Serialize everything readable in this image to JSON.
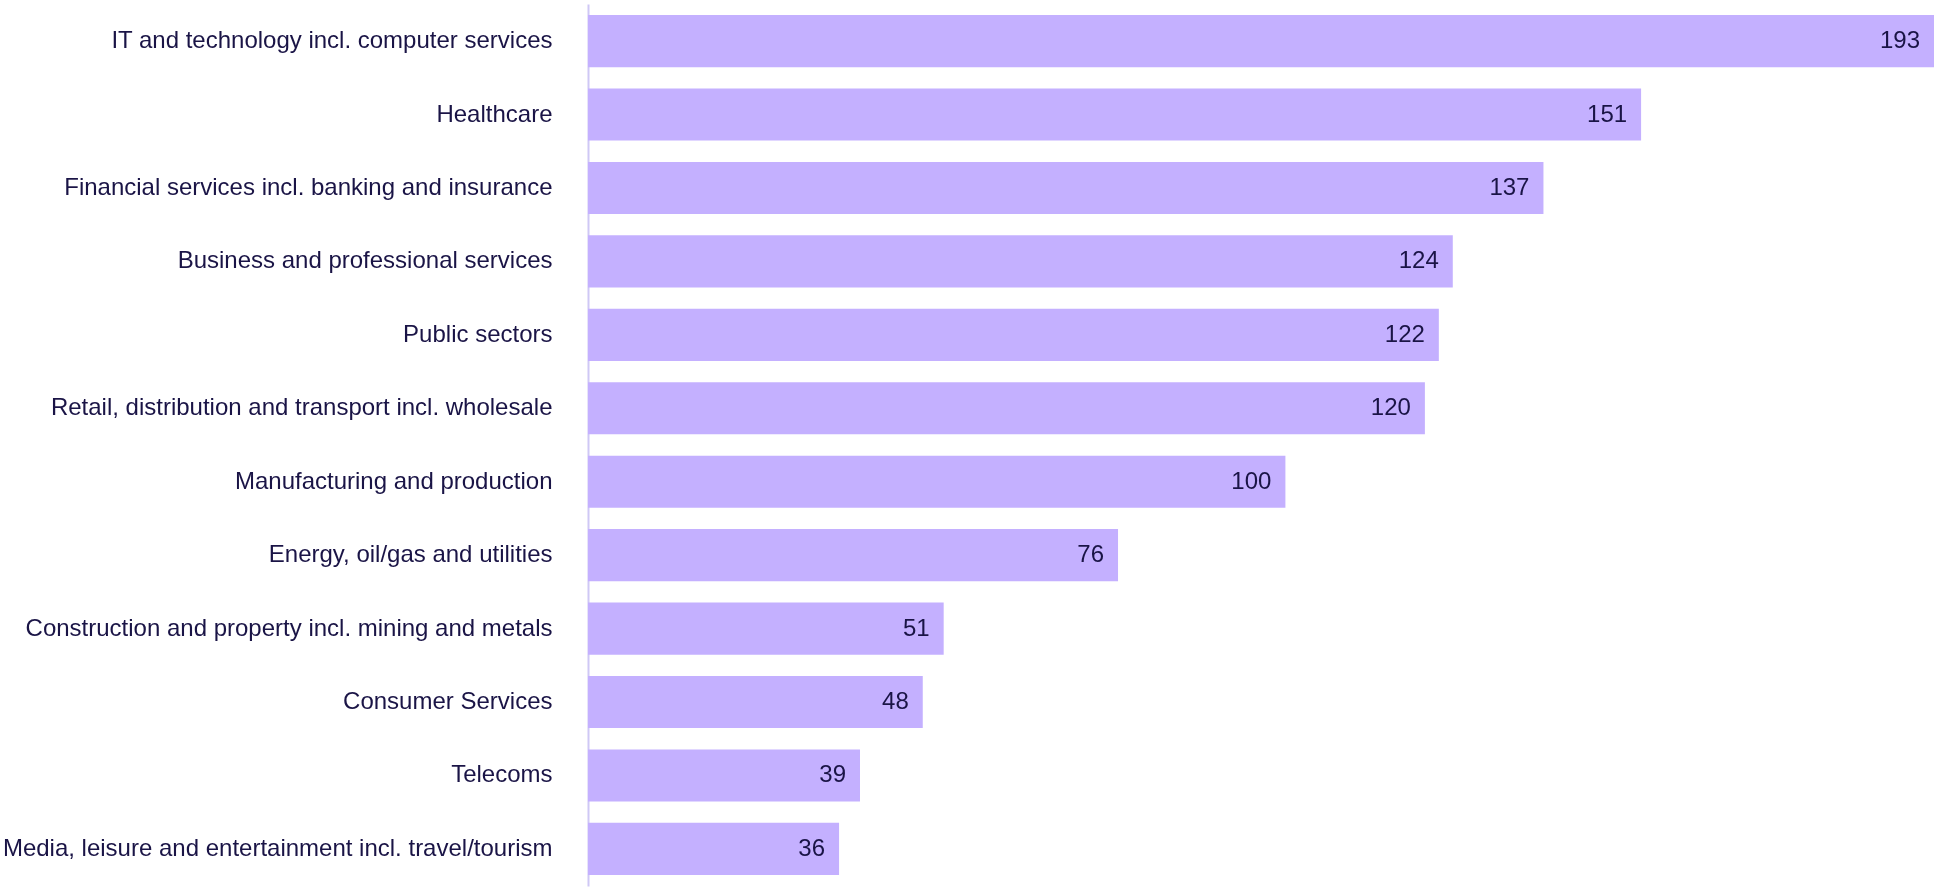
{
  "chart_data": {
    "type": "bar",
    "orientation": "horizontal",
    "categories": [
      "IT and technology incl. computer services",
      "Healthcare",
      "Financial services incl. banking and insurance",
      "Business and professional services",
      "Public sectors",
      "Retail, distribution and transport incl. wholesale",
      "Manufacturing and production",
      "Energy, oil/gas and utilities",
      "Construction and property incl. mining and metals",
      "Consumer Services",
      "Telecoms",
      "Media, leisure and entertainment incl. travel/tourism"
    ],
    "values": [
      193,
      151,
      137,
      124,
      122,
      120,
      100,
      76,
      51,
      48,
      39,
      36
    ],
    "color": "#c4b0ff",
    "data_labels": true
  }
}
